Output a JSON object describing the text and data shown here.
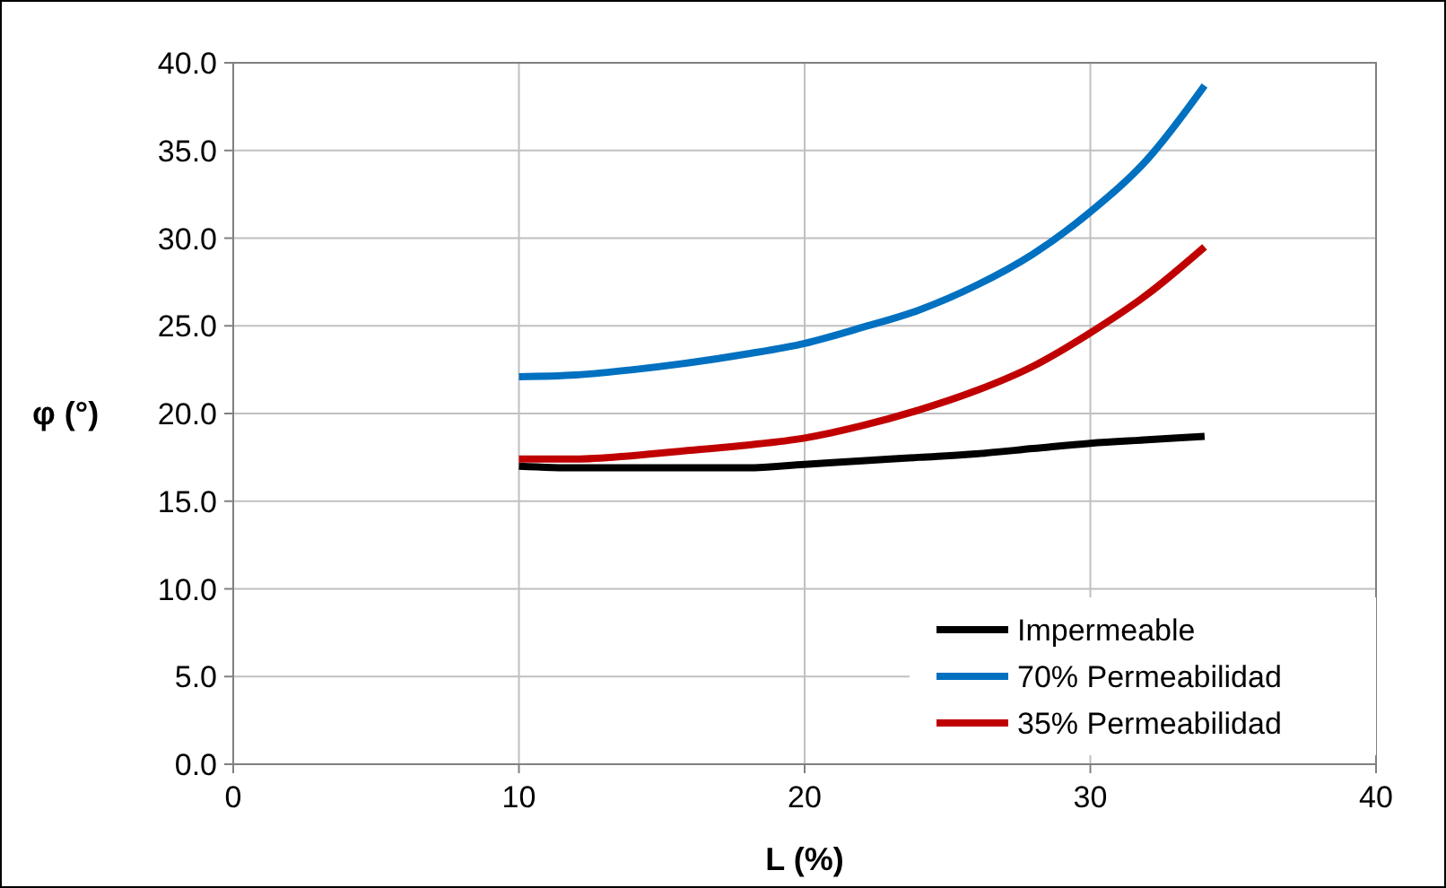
{
  "chart_data": {
    "type": "line",
    "xlabel": "L (%)",
    "ylabel": "φ (°)",
    "xlim": [
      0,
      40
    ],
    "xticks": [
      0,
      10,
      20,
      30,
      40
    ],
    "ylim": [
      0,
      40
    ],
    "yticks": [
      {
        "value": 0,
        "label": "0.0"
      },
      {
        "value": 5,
        "label": "5.0"
      },
      {
        "value": 10,
        "label": "10.0"
      },
      {
        "value": 15,
        "label": "15.0"
      },
      {
        "value": 20,
        "label": "20.0"
      },
      {
        "value": 25,
        "label": "25.0"
      },
      {
        "value": 30,
        "label": "30.0"
      },
      {
        "value": 35,
        "label": "35.0"
      },
      {
        "value": 40,
        "label": "40.0"
      }
    ],
    "grid": true,
    "legend": "bottom right",
    "marker": "none",
    "line_style": "solid",
    "x": [
      10,
      12,
      14,
      16,
      18,
      20,
      22,
      24,
      26,
      28,
      30,
      32,
      34
    ],
    "series": [
      {
        "name": "Impermeable",
        "color": "#000000",
        "values": [
          17.0,
          16.9,
          16.9,
          16.9,
          16.9,
          17.1,
          17.3,
          17.5,
          17.7,
          18.0,
          18.3,
          18.5,
          18.7
        ]
      },
      {
        "name": "70% Permeabilidad",
        "color": "#0070c0",
        "values": [
          22.1,
          22.2,
          22.5,
          22.9,
          23.4,
          24.0,
          24.9,
          25.9,
          27.3,
          29.1,
          31.5,
          34.5,
          38.7
        ]
      },
      {
        "name": "35% Permeabilidad",
        "color": "#c00000",
        "values": [
          17.4,
          17.4,
          17.6,
          17.9,
          18.2,
          18.6,
          19.3,
          20.2,
          21.3,
          22.7,
          24.6,
          26.8,
          29.5
        ]
      }
    ]
  }
}
